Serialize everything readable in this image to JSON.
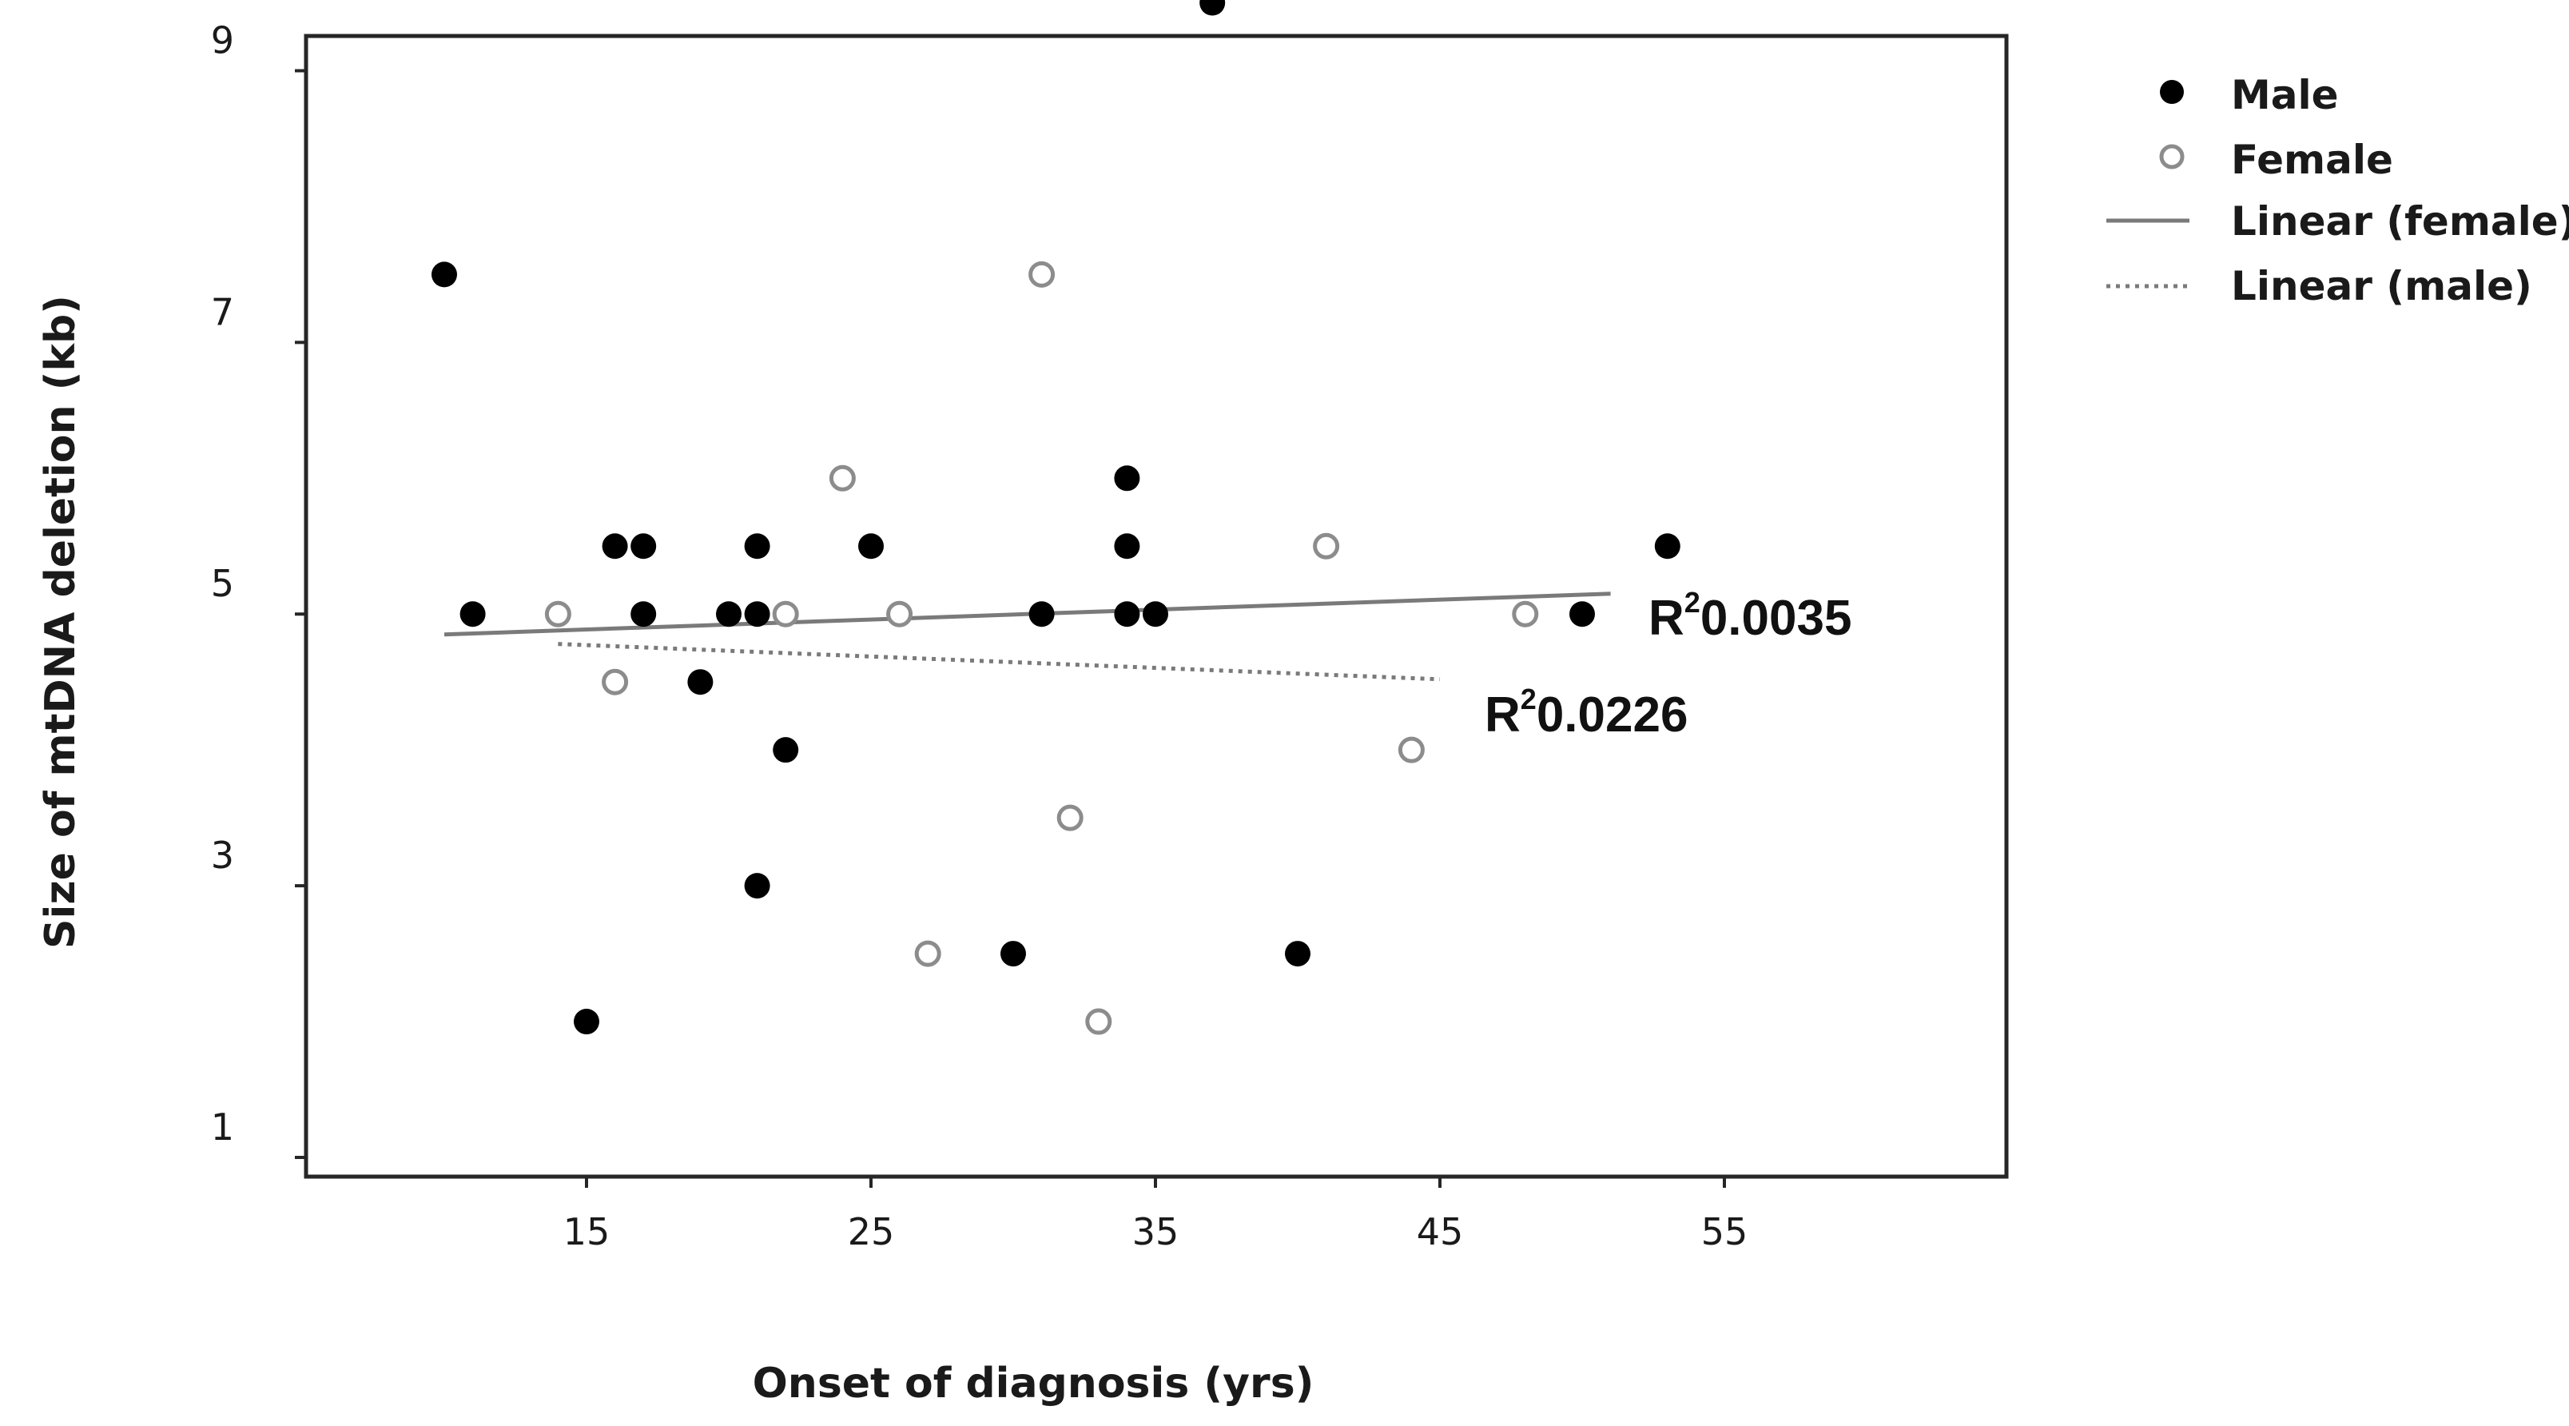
{
  "chart_data": {
    "type": "scatter",
    "title": "",
    "xlabel": "Onset of diagnosis (yrs)",
    "ylabel": "Size of mtDNA deletion (kb)",
    "xlim": [
      5,
      65
    ],
    "ylim": [
      1,
      9.5
    ],
    "x_ticks": [
      15,
      25,
      35,
      45,
      55
    ],
    "y_ticks": [
      1,
      3,
      5,
      7,
      9
    ],
    "grid": false,
    "legend_position": "top-right",
    "series": [
      {
        "name": "Male",
        "marker": "filled-circle",
        "color": "#000000",
        "points": [
          [
            37,
            9.5
          ],
          [
            10,
            7.5
          ],
          [
            16,
            5.5
          ],
          [
            17,
            5.5
          ],
          [
            21,
            5.5
          ],
          [
            25,
            5.5
          ],
          [
            34,
            6.0
          ],
          [
            34,
            5.5
          ],
          [
            53,
            5.5
          ],
          [
            11,
            5.0
          ],
          [
            17,
            5.0
          ],
          [
            20,
            5.0
          ],
          [
            21,
            5.0
          ],
          [
            31,
            5.0
          ],
          [
            34,
            5.0
          ],
          [
            35,
            5.0
          ],
          [
            50,
            5.0
          ],
          [
            19,
            4.5
          ],
          [
            22,
            4.0
          ],
          [
            21,
            3.0
          ],
          [
            30,
            2.5
          ],
          [
            40,
            2.5
          ],
          [
            15,
            2.0
          ]
        ]
      },
      {
        "name": "Female",
        "marker": "open-circle",
        "color": "#8c8c8c",
        "points": [
          [
            31,
            7.5
          ],
          [
            24,
            6.0
          ],
          [
            41,
            5.5
          ],
          [
            14,
            5.0
          ],
          [
            22,
            5.0
          ],
          [
            26,
            5.0
          ],
          [
            48,
            5.0
          ],
          [
            16,
            4.5
          ],
          [
            44,
            4.0
          ],
          [
            32,
            3.5
          ],
          [
            27,
            2.5
          ],
          [
            33,
            2.0
          ]
        ]
      }
    ],
    "trendlines": [
      {
        "name": "Linear (female)",
        "style": "solid",
        "color": "#7a7a7a",
        "x": [
          10,
          51
        ],
        "y": [
          4.85,
          5.15
        ],
        "r2_label": "0.0035"
      },
      {
        "name": "Linear (male)",
        "style": "dotted",
        "color": "#7a7a7a",
        "x": [
          14,
          45
        ],
        "y": [
          4.78,
          4.52
        ],
        "r2_label": "0.0226"
      }
    ]
  }
}
